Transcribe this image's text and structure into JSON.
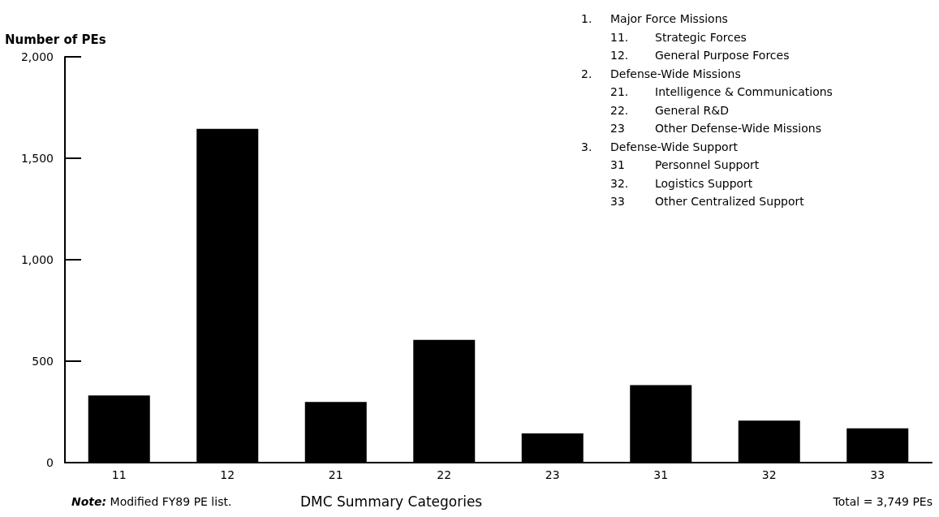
{
  "chart_data": {
    "type": "bar",
    "ylabel": "Number of PEs",
    "xlabel": "DMC Summary  Categories",
    "categories": [
      "11",
      "12",
      "21",
      "22",
      "23",
      "31",
      "32",
      "33"
    ],
    "values": [
      331,
      1645,
      299,
      605,
      144,
      382,
      207,
      169
    ],
    "color": "#000000",
    "ylim": [
      0,
      2000
    ],
    "yticks": [
      0,
      500,
      {
        "value": 1000,
        "label": "1,000"
      },
      {
        "value": 1500,
        "label": "1,500"
      },
      {
        "value": 2000,
        "label": "2,000"
      }
    ],
    "grid": false,
    "annotations": [
      "1. Major Force Missions",
      "11. Strategic Forces",
      "12. General Purpose Forces",
      "2. Defense-Wide Missions",
      "21. Intelligence & Communications",
      "22. General R&D",
      "23 Other Defense-Wide Missions",
      "3. Defense-Wide Support",
      "31 Personnel Support",
      "32. Logistics Support",
      "33 Other Centralized Support",
      "Note: Modified FY89 PE list.",
      "Total = 3,749 PEs"
    ]
  }
}
